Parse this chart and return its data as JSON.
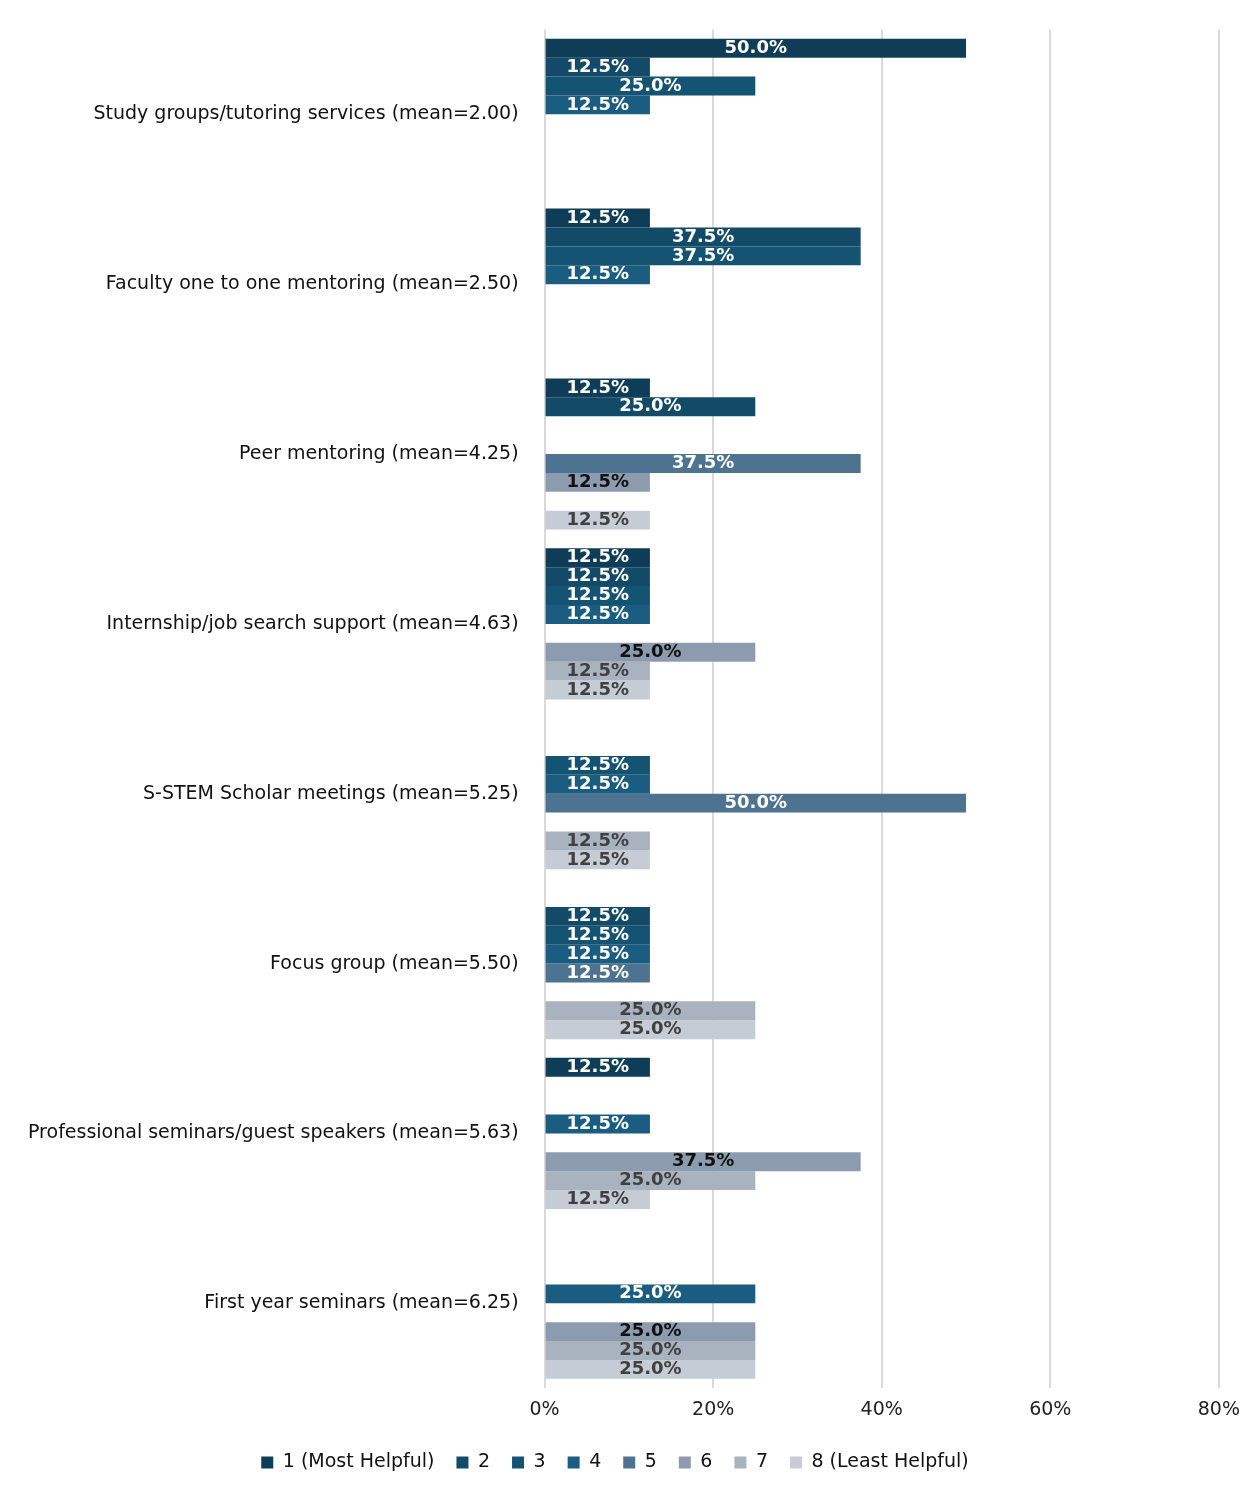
{
  "chart_data": {
    "type": "bar",
    "orientation": "horizontal",
    "categories": [
      "Study groups/tutoring services (mean=2.00)",
      "Faculty one to one mentoring (mean=2.50)",
      "Peer mentoring (mean=4.25)",
      "Internship/job search support (mean=4.63)",
      "S-STEM Scholar meetings (mean=5.25)",
      "Focus group (mean=5.50)",
      "Professional seminars/guest speakers (mean=5.63)",
      "First year seminars (mean=6.25)"
    ],
    "series": [
      {
        "name": "1 (Most Helpful)",
        "color": "#0f3d57",
        "values": [
          50,
          12.5,
          12.5,
          12.5,
          null,
          null,
          12.5,
          null
        ],
        "value_labels": [
          "50.0%",
          "12.5%",
          "12.5%",
          "12.5%",
          null,
          null,
          "12.5%",
          null
        ]
      },
      {
        "name": "2",
        "color": "#124a68",
        "values": [
          12.5,
          37.5,
          25,
          12.5,
          null,
          12.5,
          null,
          null
        ],
        "value_labels": [
          "12.5%",
          "37.5%",
          "25.0%",
          "12.5%",
          null,
          "12.5%",
          null,
          null
        ]
      },
      {
        "name": "3",
        "color": "#145372",
        "values": [
          25,
          37.5,
          null,
          12.5,
          12.5,
          12.5,
          null,
          null
        ],
        "value_labels": [
          "25.0%",
          "37.5%",
          null,
          "12.5%",
          "12.5%",
          "12.5%",
          null,
          null
        ]
      },
      {
        "name": "4",
        "color": "#1a5d80",
        "values": [
          12.5,
          12.5,
          null,
          12.5,
          12.5,
          12.5,
          12.5,
          25
        ],
        "value_labels": [
          "12.5%",
          "12.5%",
          null,
          "12.5%",
          "12.5%",
          "12.5%",
          "12.5%",
          "25.0%"
        ]
      },
      {
        "name": "5",
        "color": "#4d7391",
        "values": [
          null,
          null,
          37.5,
          null,
          50,
          12.5,
          null,
          null
        ],
        "value_labels": [
          null,
          null,
          "37.5%",
          null,
          "50.0%",
          "12.5%",
          null,
          null
        ]
      },
      {
        "name": "6",
        "color": "#8c9cae",
        "values": [
          null,
          null,
          12.5,
          25,
          null,
          null,
          37.5,
          25
        ],
        "value_labels": [
          null,
          null,
          "12.5%",
          "25.0%",
          null,
          null,
          "37.5%",
          "25.0%"
        ]
      },
      {
        "name": "7",
        "color": "#a8b3bf",
        "values": [
          null,
          null,
          null,
          12.5,
          12.5,
          25,
          25,
          25
        ],
        "value_labels": [
          null,
          null,
          null,
          "12.5%",
          "12.5%",
          "25.0%",
          "25.0%",
          "25.0%"
        ]
      },
      {
        "name": "8 (Least Helpful)",
        "color": "#c6ccd5",
        "values": [
          null,
          null,
          12.5,
          12.5,
          12.5,
          25,
          12.5,
          25
        ],
        "value_labels": [
          null,
          null,
          "12.5%",
          "12.5%",
          "12.5%",
          "25.0%",
          "12.5%",
          "25.0%"
        ]
      }
    ],
    "xlim": [
      0,
      80
    ],
    "xticks": [
      {
        "value": 0,
        "label": "0%"
      },
      {
        "value": 20,
        "label": "20%"
      },
      {
        "value": 40,
        "label": "40%"
      },
      {
        "value": 60,
        "label": "60%"
      },
      {
        "value": 80,
        "label": "80%"
      }
    ],
    "grid": "x",
    "legend": "bottom"
  }
}
